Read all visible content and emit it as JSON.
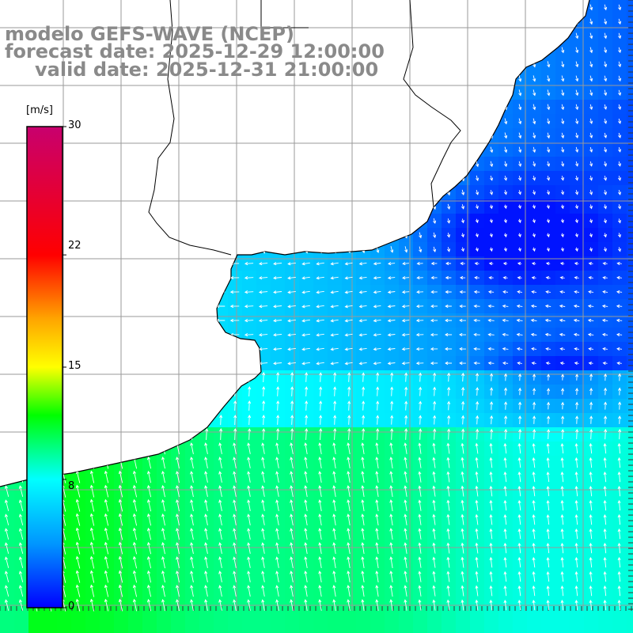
{
  "title": {
    "line1": "modelo GEFS-WAVE (NCEP)",
    "line2": "forecast date: 2025-12-29 12:00:00",
    "line3": "valid date: 2025-12-31 21:00:00"
  },
  "colorbar": {
    "unit": "[m/s]",
    "ticks": [
      "30",
      "22",
      "15",
      "8",
      "0"
    ],
    "tick_values": [
      30,
      22,
      15,
      8,
      0
    ],
    "min": 0,
    "max": 30,
    "stops": [
      {
        "v": 0,
        "color": "#0000ff"
      },
      {
        "v": 4,
        "color": "#0096ff"
      },
      {
        "v": 8,
        "color": "#00ffff"
      },
      {
        "v": 12,
        "color": "#00ff00"
      },
      {
        "v": 15,
        "color": "#ffff00"
      },
      {
        "v": 18,
        "color": "#ffa500"
      },
      {
        "v": 22,
        "color": "#ff0000"
      },
      {
        "v": 30,
        "color": "#c8006e"
      }
    ]
  },
  "map": {
    "field": "wind speed",
    "units": "m/s",
    "land_color": "#ffffff",
    "grid_color": "#9a9a9a",
    "coast_color": "#000000",
    "arrow_color": "#ffffff"
  }
}
